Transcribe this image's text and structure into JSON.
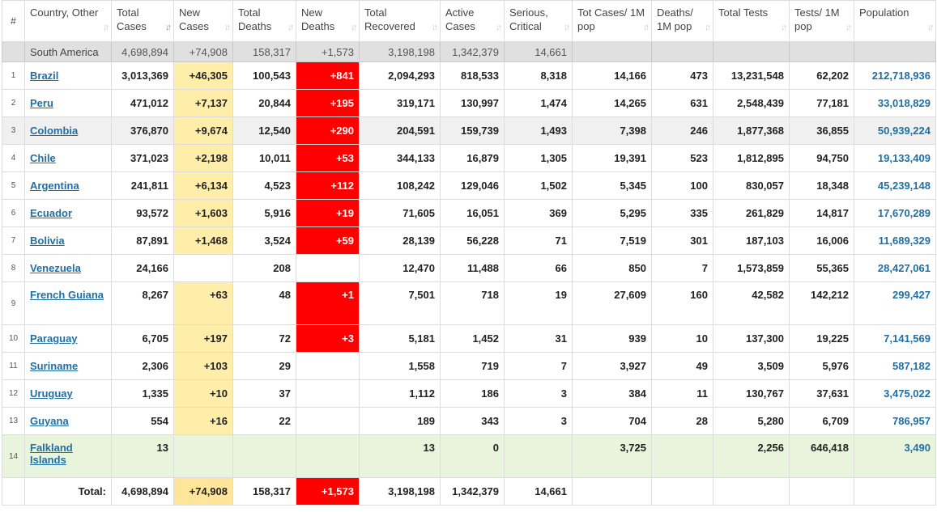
{
  "headers": [
    {
      "key": "idx",
      "label": "#"
    },
    {
      "key": "country",
      "label": "Country, Other"
    },
    {
      "key": "total_cases",
      "label": "Total Cases"
    },
    {
      "key": "new_cases",
      "label": "New Cases"
    },
    {
      "key": "total_deaths",
      "label": "Total Deaths"
    },
    {
      "key": "new_deaths",
      "label": "New Deaths"
    },
    {
      "key": "total_recovered",
      "label": "Total Recovered"
    },
    {
      "key": "active_cases",
      "label": "Active Cases"
    },
    {
      "key": "serious",
      "label": "Serious, Critical"
    },
    {
      "key": "cases_per_1m",
      "label": "Tot Cases/ 1M pop"
    },
    {
      "key": "deaths_per_1m",
      "label": "Deaths/ 1M pop"
    },
    {
      "key": "total_tests",
      "label": "Total Tests"
    },
    {
      "key": "tests_per_1m",
      "label": "Tests/ 1M pop"
    },
    {
      "key": "population",
      "label": "Population"
    }
  ],
  "continent_row": {
    "country": "South America",
    "total_cases": "4,698,894",
    "new_cases": "+74,908",
    "total_deaths": "158,317",
    "new_deaths": "+1,573",
    "total_recovered": "3,198,198",
    "active_cases": "1,342,379",
    "serious": "14,661",
    "cases_per_1m": "",
    "deaths_per_1m": "",
    "total_tests": "",
    "tests_per_1m": "",
    "population": ""
  },
  "rows": [
    {
      "idx": "1",
      "country": "Brazil",
      "total_cases": "3,013,369",
      "new_cases": "+46,305",
      "total_deaths": "100,543",
      "new_deaths": "+841",
      "total_recovered": "2,094,293",
      "active_cases": "818,533",
      "serious": "8,318",
      "cases_per_1m": "14,166",
      "deaths_per_1m": "473",
      "total_tests": "13,231,548",
      "tests_per_1m": "62,202",
      "population": "212,718,936"
    },
    {
      "idx": "2",
      "country": "Peru",
      "total_cases": "471,012",
      "new_cases": "+7,137",
      "total_deaths": "20,844",
      "new_deaths": "+195",
      "total_recovered": "319,171",
      "active_cases": "130,997",
      "serious": "1,474",
      "cases_per_1m": "14,265",
      "deaths_per_1m": "631",
      "total_tests": "2,548,439",
      "tests_per_1m": "77,181",
      "population": "33,018,829"
    },
    {
      "idx": "3",
      "country": "Colombia",
      "total_cases": "376,870",
      "new_cases": "+9,674",
      "total_deaths": "12,540",
      "new_deaths": "+290",
      "total_recovered": "204,591",
      "active_cases": "159,739",
      "serious": "1,493",
      "cases_per_1m": "7,398",
      "deaths_per_1m": "246",
      "total_tests": "1,877,368",
      "tests_per_1m": "36,855",
      "population": "50,939,224"
    },
    {
      "idx": "4",
      "country": "Chile",
      "total_cases": "371,023",
      "new_cases": "+2,198",
      "total_deaths": "10,011",
      "new_deaths": "+53",
      "total_recovered": "344,133",
      "active_cases": "16,879",
      "serious": "1,305",
      "cases_per_1m": "19,391",
      "deaths_per_1m": "523",
      "total_tests": "1,812,895",
      "tests_per_1m": "94,750",
      "population": "19,133,409"
    },
    {
      "idx": "5",
      "country": "Argentina",
      "total_cases": "241,811",
      "new_cases": "+6,134",
      "total_deaths": "4,523",
      "new_deaths": "+112",
      "total_recovered": "108,242",
      "active_cases": "129,046",
      "serious": "1,502",
      "cases_per_1m": "5,345",
      "deaths_per_1m": "100",
      "total_tests": "830,057",
      "tests_per_1m": "18,348",
      "population": "45,239,148"
    },
    {
      "idx": "6",
      "country": "Ecuador",
      "total_cases": "93,572",
      "new_cases": "+1,603",
      "total_deaths": "5,916",
      "new_deaths": "+19",
      "total_recovered": "71,605",
      "active_cases": "16,051",
      "serious": "369",
      "cases_per_1m": "5,295",
      "deaths_per_1m": "335",
      "total_tests": "261,829",
      "tests_per_1m": "14,817",
      "population": "17,670,289"
    },
    {
      "idx": "7",
      "country": "Bolivia",
      "total_cases": "87,891",
      "new_cases": "+1,468",
      "total_deaths": "3,524",
      "new_deaths": "+59",
      "total_recovered": "28,139",
      "active_cases": "56,228",
      "serious": "71",
      "cases_per_1m": "7,519",
      "deaths_per_1m": "301",
      "total_tests": "187,103",
      "tests_per_1m": "16,006",
      "population": "11,689,329"
    },
    {
      "idx": "8",
      "country": "Venezuela",
      "total_cases": "24,166",
      "new_cases": "",
      "total_deaths": "208",
      "new_deaths": "",
      "total_recovered": "12,470",
      "active_cases": "11,488",
      "serious": "66",
      "cases_per_1m": "850",
      "deaths_per_1m": "7",
      "total_tests": "1,573,859",
      "tests_per_1m": "55,365",
      "population": "28,427,061"
    },
    {
      "idx": "9",
      "country": "French Guiana",
      "total_cases": "8,267",
      "new_cases": "+63",
      "total_deaths": "48",
      "new_deaths": "+1",
      "total_recovered": "7,501",
      "active_cases": "718",
      "serious": "19",
      "cases_per_1m": "27,609",
      "deaths_per_1m": "160",
      "total_tests": "42,582",
      "tests_per_1m": "142,212",
      "population": "299,427"
    },
    {
      "idx": "10",
      "country": "Paraguay",
      "total_cases": "6,705",
      "new_cases": "+197",
      "total_deaths": "72",
      "new_deaths": "+3",
      "total_recovered": "5,181",
      "active_cases": "1,452",
      "serious": "31",
      "cases_per_1m": "939",
      "deaths_per_1m": "10",
      "total_tests": "137,300",
      "tests_per_1m": "19,225",
      "population": "7,141,569"
    },
    {
      "idx": "11",
      "country": "Suriname",
      "total_cases": "2,306",
      "new_cases": "+103",
      "total_deaths": "29",
      "new_deaths": "",
      "total_recovered": "1,558",
      "active_cases": "719",
      "serious": "7",
      "cases_per_1m": "3,927",
      "deaths_per_1m": "49",
      "total_tests": "3,509",
      "tests_per_1m": "5,976",
      "population": "587,182"
    },
    {
      "idx": "12",
      "country": "Uruguay",
      "total_cases": "1,335",
      "new_cases": "+10",
      "total_deaths": "37",
      "new_deaths": "",
      "total_recovered": "1,112",
      "active_cases": "186",
      "serious": "3",
      "cases_per_1m": "384",
      "deaths_per_1m": "11",
      "total_tests": "130,767",
      "tests_per_1m": "37,631",
      "population": "3,475,022"
    },
    {
      "idx": "13",
      "country": "Guyana",
      "total_cases": "554",
      "new_cases": "+16",
      "total_deaths": "22",
      "new_deaths": "",
      "total_recovered": "189",
      "active_cases": "343",
      "serious": "3",
      "cases_per_1m": "704",
      "deaths_per_1m": "28",
      "total_tests": "5,280",
      "tests_per_1m": "6,709",
      "population": "786,957"
    },
    {
      "idx": "14",
      "country": "Falkland Islands",
      "total_cases": "13",
      "new_cases": "",
      "total_deaths": "",
      "new_deaths": "",
      "total_recovered": "13",
      "active_cases": "0",
      "serious": "",
      "cases_per_1m": "3,725",
      "deaths_per_1m": "",
      "total_tests": "2,256",
      "tests_per_1m": "646,418",
      "population": "3,490"
    }
  ],
  "total_row": {
    "label": "Total:",
    "total_cases": "4,698,894",
    "new_cases": "+74,908",
    "total_deaths": "158,317",
    "new_deaths": "+1,573",
    "total_recovered": "3,198,198",
    "active_cases": "1,342,379",
    "serious": "14,661",
    "cases_per_1m": "",
    "deaths_per_1m": "",
    "total_tests": "",
    "tests_per_1m": "",
    "population": ""
  },
  "sort_glyph": "↓↑",
  "colors": {
    "link": "#1f6fa5",
    "new_cases_bg": "#ffeeaa",
    "new_deaths_bg": "#ff0000",
    "continent_bg": "#e0e0e0",
    "highlight_row_bg": "#f0f0f0",
    "green_row_bg": "#e8f4dc"
  }
}
